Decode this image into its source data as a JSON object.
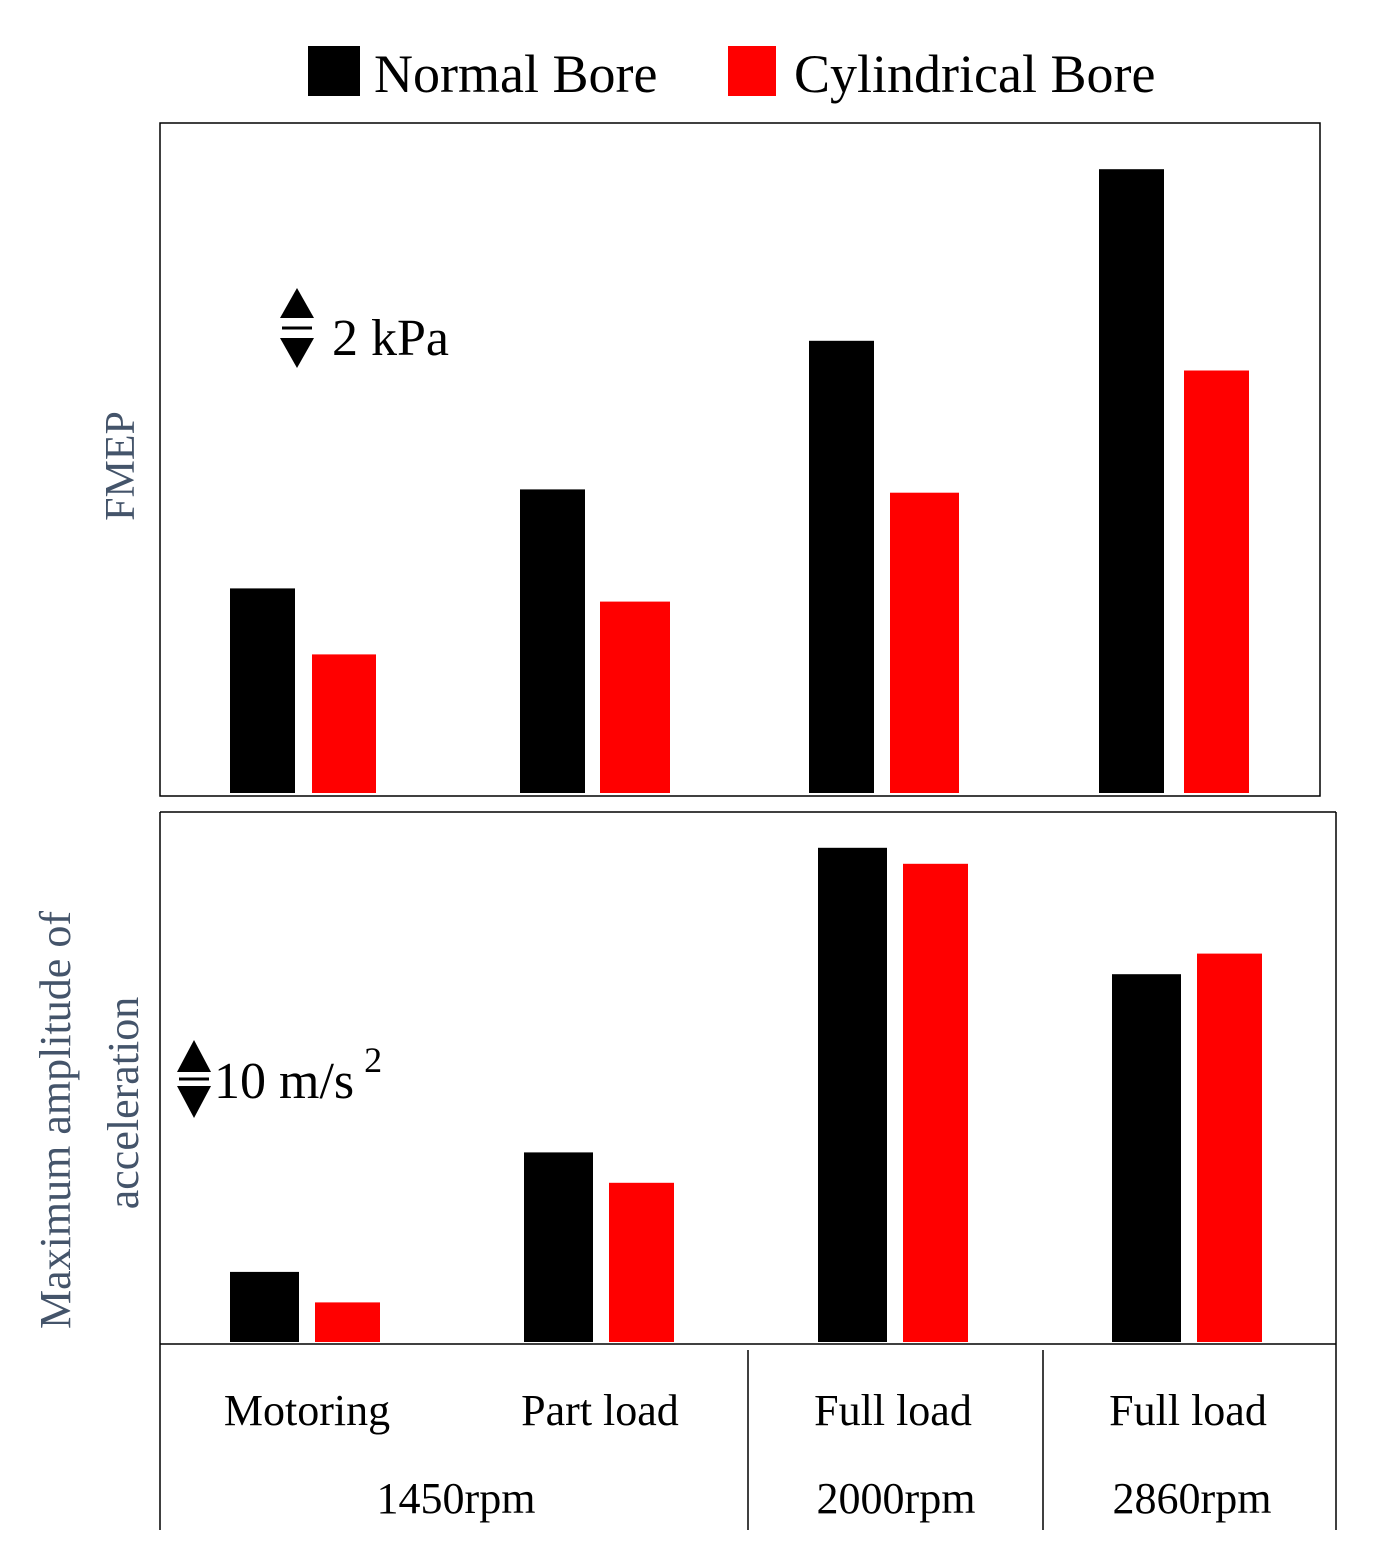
{
  "legend": {
    "normal_label": "Normal Bore",
    "cylindrical_label": "Cylindrical Bore"
  },
  "colors": {
    "normal": "#000000",
    "cylindrical": "#ff0000",
    "ylabel": "#44546a"
  },
  "chart_data": [
    {
      "type": "bar",
      "title": "",
      "ylabel": "FMEP",
      "scale_annotation": "2 kPa",
      "scale_unit_value": 2,
      "categories": [
        "Motoring 1450rpm",
        "Part load 1450rpm",
        "Full load 2000rpm",
        "Full load 2860rpm"
      ],
      "series": [
        {
          "name": "Normal Bore",
          "values": [
            6.2,
            9.2,
            13.7,
            18.9
          ]
        },
        {
          "name": "Cylindrical Bore",
          "values": [
            4.2,
            5.8,
            9.1,
            12.8
          ]
        }
      ],
      "ylim": [
        0,
        20.3
      ],
      "grid": false
    },
    {
      "type": "bar",
      "title": "",
      "ylabel": "Maximum amplitude of acceleration",
      "ylabel_line1": "Maximum amplitude of",
      "ylabel_line2": "acceleration",
      "scale_annotation": "10 m/s",
      "scale_annotation_sup": "2",
      "scale_unit_value": 10,
      "categories": [
        "Motoring 1450rpm",
        "Part load 1450rpm",
        "Full load 2000rpm",
        "Full load 2860rpm"
      ],
      "series": [
        {
          "name": "Normal Bore",
          "values": [
            9.2,
            24.9,
            64.9,
            48.3
          ]
        },
        {
          "name": "Cylindrical Bore",
          "values": [
            5.2,
            20.9,
            62.8,
            51.0
          ]
        }
      ],
      "ylim": [
        0,
        69.6
      ],
      "grid": false
    }
  ],
  "xaxis": {
    "row1": [
      "Motoring",
      "Part load",
      "Full load",
      "Full load"
    ],
    "row2": [
      "1450rpm",
      "2000rpm",
      "2860rpm"
    ]
  }
}
